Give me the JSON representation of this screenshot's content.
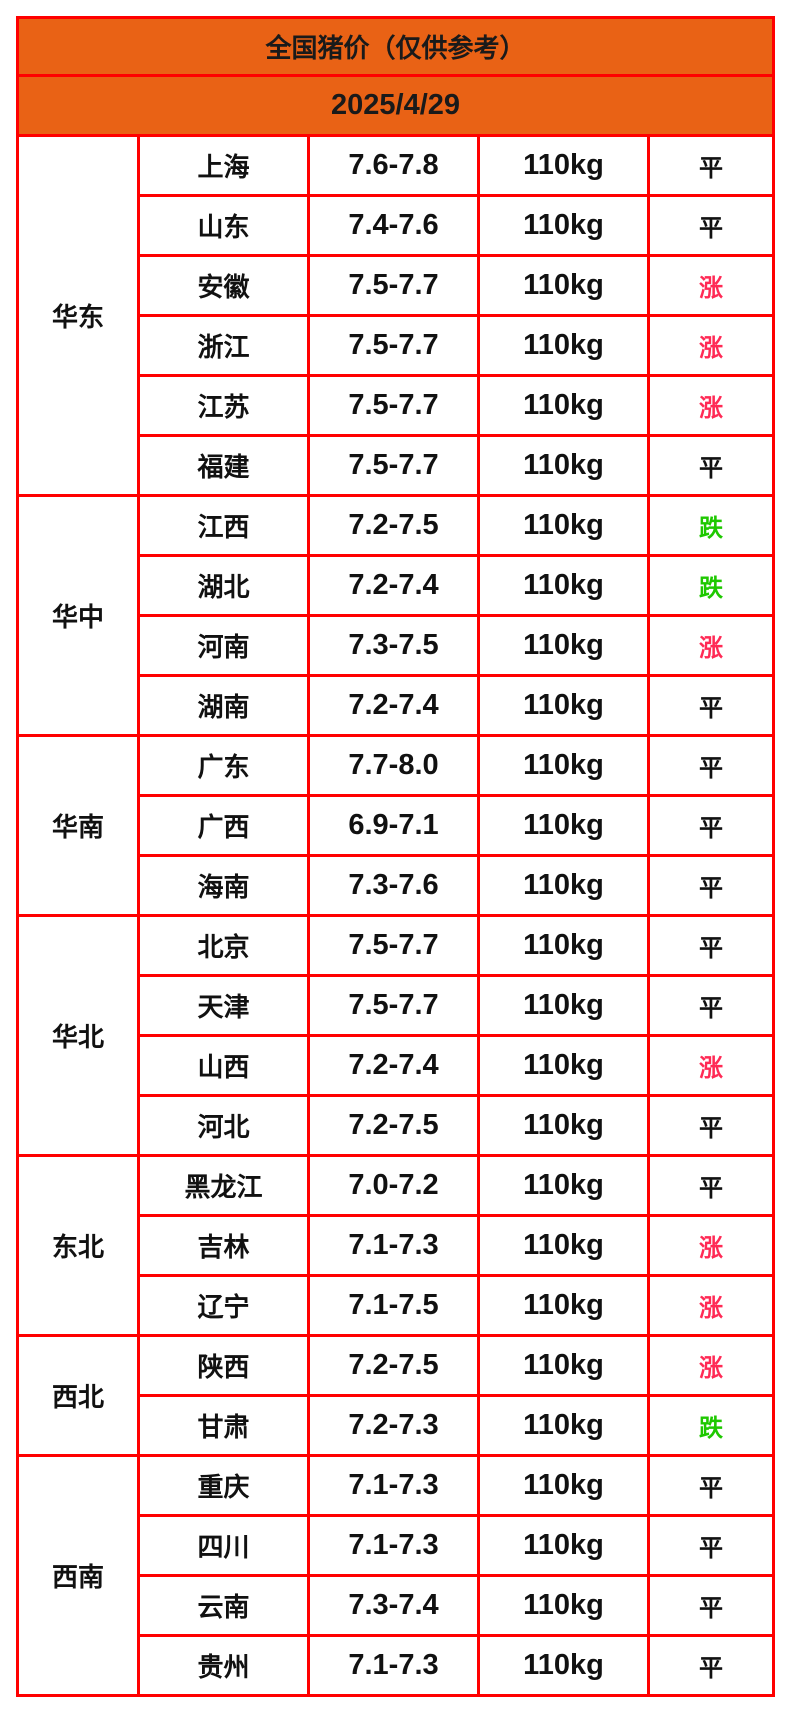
{
  "title": "全国猪价（仅供参考）",
  "date": "2025/4/29",
  "colors": {
    "header_bg": "#e96215",
    "border": "#ff0000",
    "up": "#ff2a55",
    "down": "#1ec800",
    "flat": "#111111"
  },
  "regions": [
    {
      "name": "华东",
      "rows": [
        {
          "province": "上海",
          "price": "7.6-7.8",
          "weight": "110kg",
          "trend": "平"
        },
        {
          "province": "山东",
          "price": "7.4-7.6",
          "weight": "110kg",
          "trend": "平"
        },
        {
          "province": "安徽",
          "price": "7.5-7.7",
          "weight": "110kg",
          "trend": "涨"
        },
        {
          "province": "浙江",
          "price": "7.5-7.7",
          "weight": "110kg",
          "trend": "涨"
        },
        {
          "province": "江苏",
          "price": "7.5-7.7",
          "weight": "110kg",
          "trend": "涨"
        },
        {
          "province": "福建",
          "price": "7.5-7.7",
          "weight": "110kg",
          "trend": "平"
        }
      ]
    },
    {
      "name": "华中",
      "rows": [
        {
          "province": "江西",
          "price": "7.2-7.5",
          "weight": "110kg",
          "trend": "跌"
        },
        {
          "province": "湖北",
          "price": "7.2-7.4",
          "weight": "110kg",
          "trend": "跌"
        },
        {
          "province": "河南",
          "price": "7.3-7.5",
          "weight": "110kg",
          "trend": "涨"
        },
        {
          "province": "湖南",
          "price": "7.2-7.4",
          "weight": "110kg",
          "trend": "平"
        }
      ]
    },
    {
      "name": "华南",
      "rows": [
        {
          "province": "广东",
          "price": "7.7-8.0",
          "weight": "110kg",
          "trend": "平"
        },
        {
          "province": "广西",
          "price": "6.9-7.1",
          "weight": "110kg",
          "trend": "平"
        },
        {
          "province": "海南",
          "price": "7.3-7.6",
          "weight": "110kg",
          "trend": "平"
        }
      ]
    },
    {
      "name": "华北",
      "rows": [
        {
          "province": "北京",
          "price": "7.5-7.7",
          "weight": "110kg",
          "trend": "平"
        },
        {
          "province": "天津",
          "price": "7.5-7.7",
          "weight": "110kg",
          "trend": "平"
        },
        {
          "province": "山西",
          "price": "7.2-7.4",
          "weight": "110kg",
          "trend": "涨"
        },
        {
          "province": "河北",
          "price": "7.2-7.5",
          "weight": "110kg",
          "trend": "平"
        }
      ]
    },
    {
      "name": "东北",
      "rows": [
        {
          "province": "黑龙江",
          "price": "7.0-7.2",
          "weight": "110kg",
          "trend": "平"
        },
        {
          "province": "吉林",
          "price": "7.1-7.3",
          "weight": "110kg",
          "trend": "涨"
        },
        {
          "province": "辽宁",
          "price": "7.1-7.5",
          "weight": "110kg",
          "trend": "涨"
        }
      ]
    },
    {
      "name": "西北",
      "rows": [
        {
          "province": "陕西",
          "price": "7.2-7.5",
          "weight": "110kg",
          "trend": "涨"
        },
        {
          "province": "甘肃",
          "price": "7.2-7.3",
          "weight": "110kg",
          "trend": "跌"
        }
      ]
    },
    {
      "name": "西南",
      "rows": [
        {
          "province": "重庆",
          "price": "7.1-7.3",
          "weight": "110kg",
          "trend": "平"
        },
        {
          "province": "四川",
          "price": "7.1-7.3",
          "weight": "110kg",
          "trend": "平"
        },
        {
          "province": "云南",
          "price": "7.3-7.4",
          "weight": "110kg",
          "trend": "平"
        },
        {
          "province": "贵州",
          "price": "7.1-7.3",
          "weight": "110kg",
          "trend": "平"
        }
      ]
    }
  ]
}
